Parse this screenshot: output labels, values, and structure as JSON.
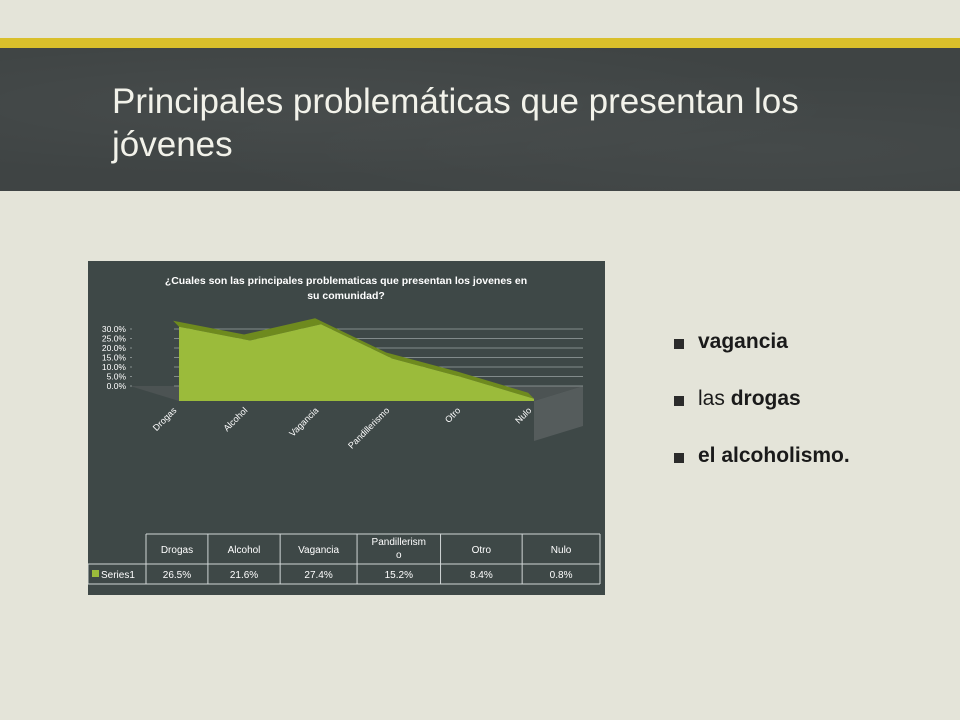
{
  "slide": {
    "title": "Principales problemáticas que presentan los jóvenes",
    "bullets": [
      {
        "plain": " ",
        "bold": "vagancia"
      },
      {
        "plain": "las ",
        "bold": "drogas"
      },
      {
        "plain": "",
        "bold": "el alcoholismo."
      }
    ]
  },
  "colors": {
    "accent": "#d9bf2b",
    "header_bg": "#3f4444",
    "chart_bg": "#3e4847",
    "series_fill": "#9bbb3b",
    "series_dark": "#6e8a1e"
  },
  "chart_data": {
    "type": "area",
    "title": "¿Cuales son las principales problematicas que presentan los jovenes en su comunidad?",
    "categories": [
      "Drogas",
      "Alcohol",
      "Vagancia",
      "Pandillerismo",
      "Otro",
      "Nulo"
    ],
    "series": [
      {
        "name": "Series1",
        "values": [
          26.5,
          21.6,
          27.4,
          15.2,
          8.4,
          0.8
        ]
      }
    ],
    "ylim": [
      0,
      30
    ],
    "yticks": [
      "0.0%",
      "5.0%",
      "10.0%",
      "15.0%",
      "20.0%",
      "25.0%",
      "30.0%"
    ],
    "grid": true,
    "three_d": true,
    "data_table": {
      "header_labels": [
        "Drogas",
        "Alcohol",
        "Vagancia",
        "Pandillerism o",
        "Otro",
        "Nulo"
      ],
      "row_label": "Series1",
      "cells": [
        "26.5%",
        "21.6%",
        "27.4%",
        "15.2%",
        "8.4%",
        "0.8%"
      ]
    }
  }
}
